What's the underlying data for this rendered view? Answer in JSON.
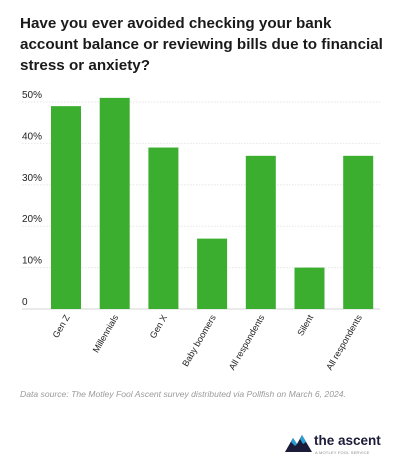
{
  "title": "Have you ever avoided checking your bank account balance or reviewing bills due to financial stress or anxiety?",
  "source": "Data source: The Motley Fool Ascent survey distributed via Pollfish on March 6, 2024.",
  "brand": {
    "name": "the ascent",
    "tagline": "A MOTLEY FOOL SERVICE",
    "color": "#1b1b3a",
    "accent": "#2a9fd6"
  },
  "chart_data": {
    "type": "bar",
    "title": "Have you ever avoided checking your bank account balance or reviewing bills due to financial stress or anxiety?",
    "categories": [
      "Gen Z",
      "Millennials",
      "Gen X",
      "Baby boomers",
      "All respondents",
      "Silent",
      "All respondents"
    ],
    "values": [
      49,
      51,
      39,
      17,
      37,
      10,
      37
    ],
    "ylim": [
      0,
      50
    ],
    "yticks": [
      "0",
      "10%",
      "20%",
      "30%",
      "40%",
      "50%"
    ],
    "grid": true,
    "legend": "none",
    "bar_color": "#3cae2f",
    "xlabel": "",
    "ylabel": ""
  }
}
